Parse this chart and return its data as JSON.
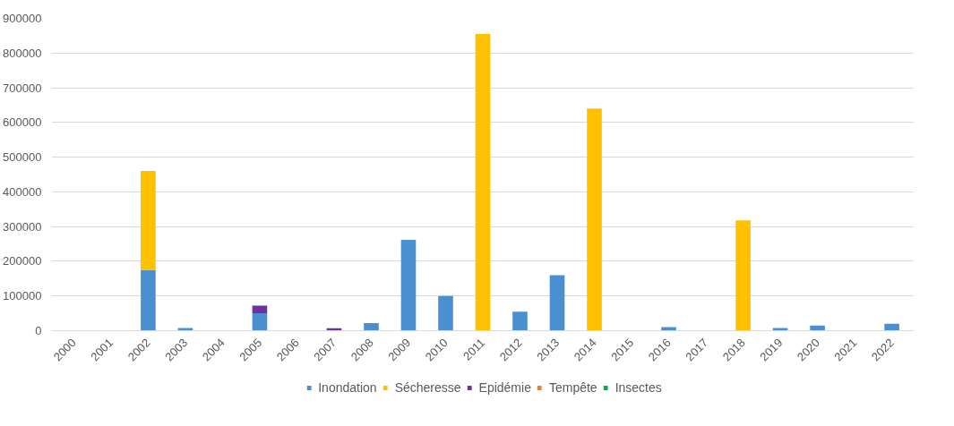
{
  "chart_data": {
    "type": "bar",
    "stacked": true,
    "categories": [
      "2000",
      "2001",
      "2002",
      "2003",
      "2004",
      "2005",
      "2006",
      "2007",
      "2008",
      "2009",
      "2010",
      "2011",
      "2012",
      "2013",
      "2014",
      "2015",
      "2016",
      "2017",
      "2018",
      "2019",
      "2020",
      "2021",
      "2022"
    ],
    "series": [
      {
        "name": "Inondation",
        "color": "#4a90d0",
        "values": [
          null,
          null,
          175000,
          8000,
          null,
          50000,
          null,
          null,
          22000,
          262000,
          100000,
          null,
          55000,
          160000,
          null,
          null,
          10000,
          null,
          null,
          8000,
          15000,
          null,
          20000
        ]
      },
      {
        "name": "Sécheresse",
        "color": "#ffc000",
        "values": [
          null,
          null,
          285000,
          null,
          null,
          null,
          null,
          null,
          null,
          null,
          null,
          855000,
          null,
          null,
          640000,
          null,
          null,
          null,
          318000,
          null,
          null,
          null,
          null
        ]
      },
      {
        "name": "Epidémie",
        "color": "#7030a0",
        "values": [
          null,
          null,
          null,
          null,
          null,
          22000,
          null,
          7000,
          null,
          null,
          null,
          null,
          null,
          null,
          null,
          null,
          null,
          null,
          null,
          null,
          null,
          null,
          null
        ]
      },
      {
        "name": "Tempête",
        "color": "#ed7d31",
        "values": [
          null,
          null,
          null,
          null,
          null,
          null,
          null,
          null,
          null,
          null,
          null,
          null,
          null,
          null,
          null,
          null,
          null,
          null,
          null,
          null,
          null,
          null,
          null
        ]
      },
      {
        "name": "Insectes",
        "color": "#00b050",
        "values": [
          null,
          null,
          null,
          null,
          null,
          null,
          null,
          null,
          null,
          null,
          null,
          null,
          null,
          null,
          null,
          null,
          null,
          null,
          null,
          null,
          null,
          null,
          null
        ]
      }
    ],
    "ylim": [
      0,
      900000
    ],
    "yticks": [
      0,
      100000,
      200000,
      300000,
      400000,
      500000,
      600000,
      700000,
      800000,
      900000
    ],
    "grid": "y",
    "legend": "bottom"
  }
}
